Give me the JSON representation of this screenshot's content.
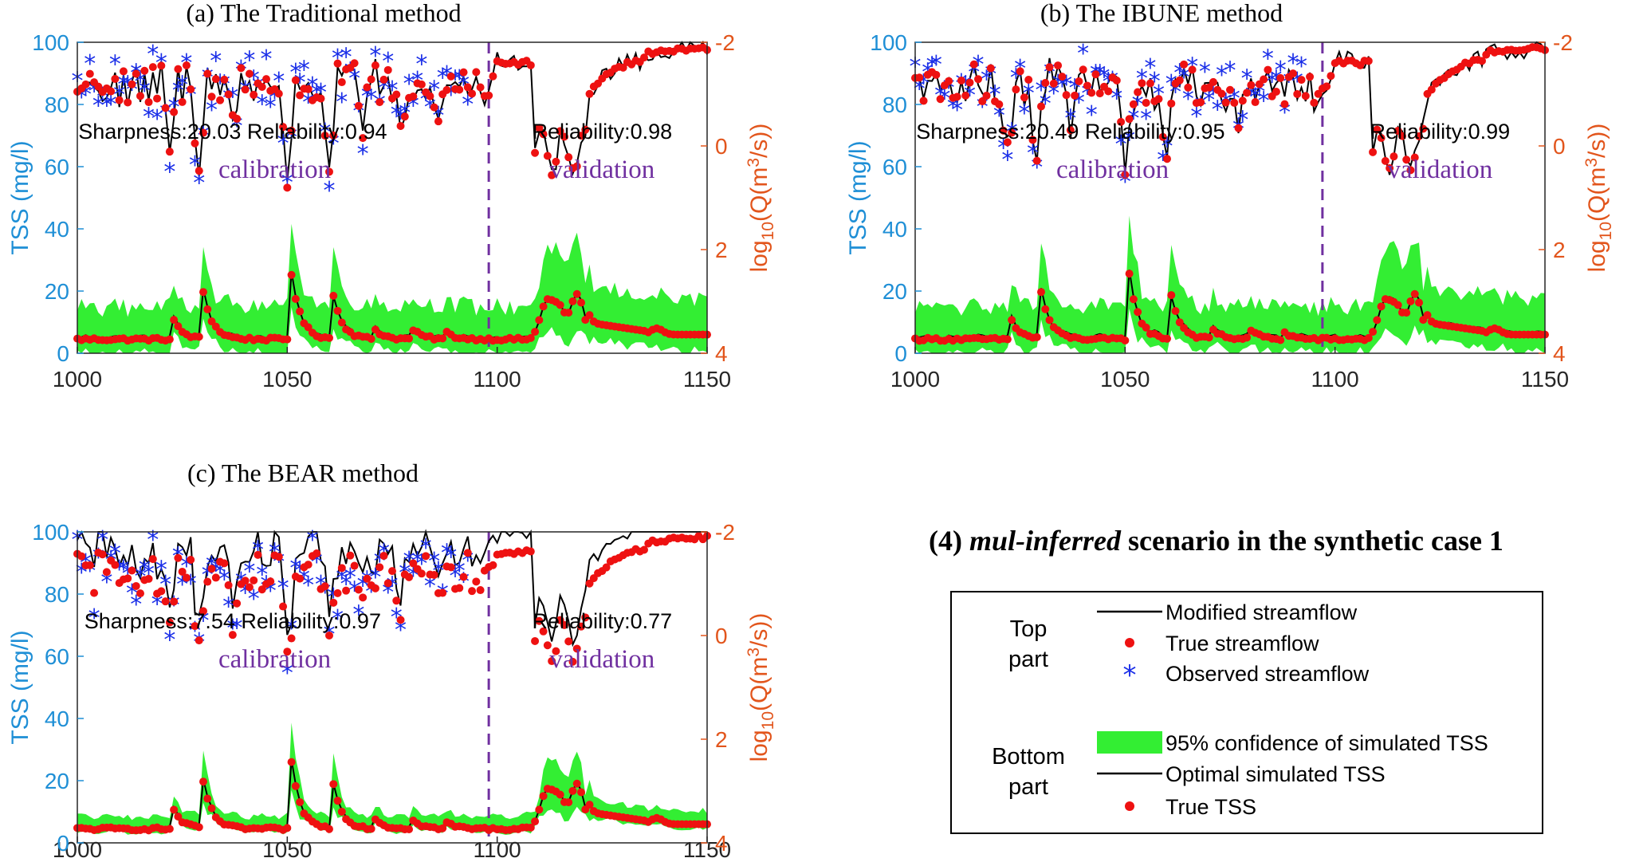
{
  "scenario_title": {
    "label": "(4) ",
    "italic": "mul-inferred",
    "rest": " scenario in the synthetic case 1"
  },
  "legend": {
    "top_part": [
      "Top",
      "part"
    ],
    "bottom_part": [
      "Bottom",
      "part"
    ],
    "entries": [
      "Modified streamflow",
      "True streamflow",
      "Observed streamflow",
      "95% confidence of simulated TSS",
      "Optimal simulated TSS",
      "True TSS"
    ]
  },
  "colors": {
    "band": "#33ee33",
    "true": "#ee1111",
    "observed": "#1a2ee8",
    "line": "#000000",
    "left_axis": "#1f8fd6",
    "right_axis": "#e2551c",
    "divider": "#7030a0"
  },
  "chart_data": [
    {
      "type": "line",
      "title": "(a) The Traditional method",
      "xlabel": "",
      "ylabel_left": "TSS (mg/l)",
      "ylabel_right": {
        "pre": "log",
        "sub": "10",
        "mid": "(Q(m",
        "sup": "3",
        "post": "/s))"
      },
      "xlim": [
        1000,
        1150
      ],
      "ylim_left": [
        0,
        100
      ],
      "ylim_right": [
        4,
        -2
      ],
      "x_ticks": [
        "1000",
        "1050",
        "1100",
        "1150"
      ],
      "y_left_ticks": [
        "0",
        "20",
        "40",
        "60",
        "80",
        "100"
      ],
      "y_right_ticks": [
        "4",
        "2",
        "0",
        "-2"
      ],
      "divider_x": 1098,
      "annotations": {
        "cal_stats": "Sharpness:20.03  Reliability:0.94",
        "val_stats": "Reliability:0.98",
        "cal_label": "calibration",
        "val_label": "validation"
      },
      "band_half_width": {
        "cal": 10,
        "val": 11
      },
      "opt_offset": 0.6,
      "obs_amp": 7
    },
    {
      "type": "line",
      "title": "(b) The IBUNE method",
      "xlabel": "",
      "ylabel_left": "TSS (mg/l)",
      "ylabel_right": {
        "pre": "log",
        "sub": "10",
        "mid": "(Q(m",
        "sup": "3",
        "post": "/s))"
      },
      "xlim": [
        1000,
        1150
      ],
      "ylim_left": [
        0,
        100
      ],
      "ylim_right": [
        4,
        -2
      ],
      "x_ticks": [
        "1000",
        "1050",
        "1100",
        "1150"
      ],
      "y_left_ticks": [
        "0",
        "20",
        "40",
        "60",
        "80",
        "100"
      ],
      "y_right_ticks": [
        "4",
        "2",
        "0",
        "-2"
      ],
      "divider_x": 1097,
      "annotations": {
        "cal_stats": "Sharpness:20.49  Reliability:0.95",
        "val_stats": "Reliability:0.99",
        "cal_label": "calibration",
        "val_label": "validation"
      },
      "band_half_width": {
        "cal": 10,
        "val": 11
      },
      "opt_offset": 0.8,
      "obs_amp": 7
    },
    {
      "type": "line",
      "title": "(c) The BEAR method",
      "xlabel": "",
      "ylabel_left": "TSS (mg/l)",
      "ylabel_right": {
        "pre": "log",
        "sub": "10",
        "mid": "(Q(m",
        "sup": "3",
        "post": "/s))"
      },
      "xlim": [
        1000,
        1150
      ],
      "ylim_left": [
        0,
        100
      ],
      "ylim_right": [
        4,
        -2
      ],
      "x_ticks": [
        "1000",
        "1050",
        "1100",
        "1150"
      ],
      "y_left_ticks": [
        "0",
        "20",
        "40",
        "60",
        "80",
        "100"
      ],
      "y_right_ticks": [
        "4",
        "2",
        "0",
        "-2"
      ],
      "divider_x": 1098,
      "annotations": {
        "cal_stats": "Sharpness:7.54  Reliability:0.97",
        "val_stats": "Reliability:0.77",
        "cal_label": "calibration",
        "val_label": "validation"
      },
      "band_half_width": {
        "cal": 3.5,
        "val": 4
      },
      "opt_offset": 0.3,
      "obs_amp": 8
    }
  ]
}
